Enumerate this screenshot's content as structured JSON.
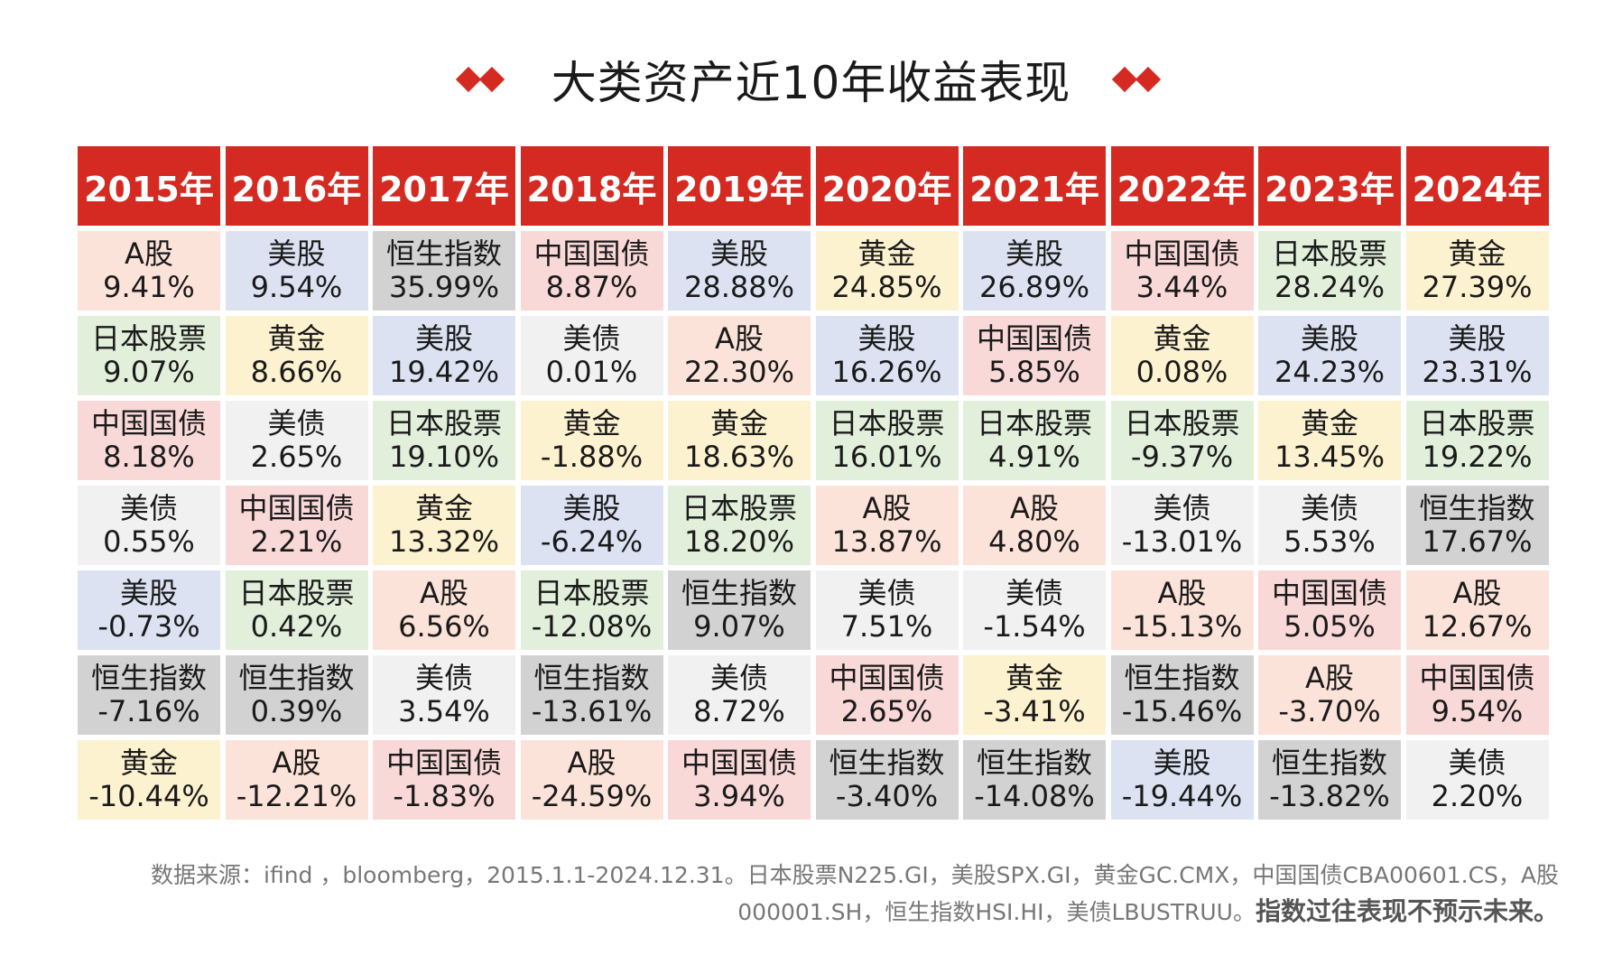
{
  "title": "大类资产近10年收益表现",
  "colors": {
    "header": "#d42a22",
    "A股": "#fce3da",
    "美股": "#dce2f2",
    "恒生指数": "#d2d2d2",
    "日本股票": "#e2efdb",
    "黄金": "#fdf2cf",
    "中国国债": "#f9d8d8",
    "美债": "#f1f1f1"
  },
  "columns": [
    {
      "year": "2015年",
      "items": [
        {
          "name": "A股",
          "value": "9.41%"
        },
        {
          "name": "日本股票",
          "value": "9.07%"
        },
        {
          "name": "中国国债",
          "value": "8.18%"
        },
        {
          "name": "美债",
          "value": "0.55%"
        },
        {
          "name": "美股",
          "value": "-0.73%"
        },
        {
          "name": "恒生指数",
          "value": "-7.16%"
        },
        {
          "name": "黄金",
          "value": "-10.44%"
        }
      ]
    },
    {
      "year": "2016年",
      "items": [
        {
          "name": "美股",
          "value": "9.54%"
        },
        {
          "name": "黄金",
          "value": "8.66%"
        },
        {
          "name": "美债",
          "value": "2.65%"
        },
        {
          "name": "中国国债",
          "value": "2.21%"
        },
        {
          "name": "日本股票",
          "value": "0.42%"
        },
        {
          "name": "恒生指数",
          "value": "0.39%"
        },
        {
          "name": "A股",
          "value": "-12.21%"
        }
      ]
    },
    {
      "year": "2017年",
      "items": [
        {
          "name": "恒生指数",
          "value": "35.99%"
        },
        {
          "name": "美股",
          "value": "19.42%"
        },
        {
          "name": "日本股票",
          "value": "19.10%"
        },
        {
          "name": "黄金",
          "value": "13.32%"
        },
        {
          "name": "A股",
          "value": "6.56%"
        },
        {
          "name": "美债",
          "value": "3.54%"
        },
        {
          "name": "中国国债",
          "value": "-1.83%"
        }
      ]
    },
    {
      "year": "2018年",
      "items": [
        {
          "name": "中国国债",
          "value": "8.87%"
        },
        {
          "name": "美债",
          "value": "0.01%"
        },
        {
          "name": "黄金",
          "value": "-1.88%"
        },
        {
          "name": "美股",
          "value": "-6.24%"
        },
        {
          "name": "日本股票",
          "value": "-12.08%"
        },
        {
          "name": "恒生指数",
          "value": "-13.61%"
        },
        {
          "name": "A股",
          "value": "-24.59%"
        }
      ]
    },
    {
      "year": "2019年",
      "items": [
        {
          "name": "美股",
          "value": "28.88%"
        },
        {
          "name": "A股",
          "value": "22.30%"
        },
        {
          "name": "黄金",
          "value": "18.63%"
        },
        {
          "name": "日本股票",
          "value": "18.20%"
        },
        {
          "name": "恒生指数",
          "value": "9.07%"
        },
        {
          "name": "美债",
          "value": "8.72%"
        },
        {
          "name": "中国国债",
          "value": "3.94%"
        }
      ]
    },
    {
      "year": "2020年",
      "items": [
        {
          "name": "黄金",
          "value": "24.85%"
        },
        {
          "name": "美股",
          "value": "16.26%"
        },
        {
          "name": "日本股票",
          "value": "16.01%"
        },
        {
          "name": "A股",
          "value": "13.87%"
        },
        {
          "name": "美债",
          "value": "7.51%"
        },
        {
          "name": "中国国债",
          "value": "2.65%"
        },
        {
          "name": "恒生指数",
          "value": "-3.40%"
        }
      ]
    },
    {
      "year": "2021年",
      "items": [
        {
          "name": "美股",
          "value": "26.89%"
        },
        {
          "name": "中国国债",
          "value": "5.85%"
        },
        {
          "name": "日本股票",
          "value": "4.91%"
        },
        {
          "name": "A股",
          "value": "4.80%"
        },
        {
          "name": "美债",
          "value": "-1.54%"
        },
        {
          "name": "黄金",
          "value": "-3.41%"
        },
        {
          "name": "恒生指数",
          "value": "-14.08%"
        }
      ]
    },
    {
      "year": "2022年",
      "items": [
        {
          "name": "中国国债",
          "value": "3.44%"
        },
        {
          "name": "黄金",
          "value": "0.08%"
        },
        {
          "name": "日本股票",
          "value": "-9.37%"
        },
        {
          "name": "美债",
          "value": "-13.01%"
        },
        {
          "name": "A股",
          "value": "-15.13%"
        },
        {
          "name": "恒生指数",
          "value": "-15.46%"
        },
        {
          "name": "美股",
          "value": "-19.44%"
        }
      ]
    },
    {
      "year": "2023年",
      "items": [
        {
          "name": "日本股票",
          "value": "28.24%"
        },
        {
          "name": "美股",
          "value": "24.23%"
        },
        {
          "name": "黄金",
          "value": "13.45%"
        },
        {
          "name": "美债",
          "value": "5.53%"
        },
        {
          "name": "中国国债",
          "value": "5.05%"
        },
        {
          "name": "A股",
          "value": "-3.70%"
        },
        {
          "name": "恒生指数",
          "value": "-13.82%"
        }
      ]
    },
    {
      "year": "2024年",
      "items": [
        {
          "name": "黄金",
          "value": "27.39%"
        },
        {
          "name": "美股",
          "value": "23.31%"
        },
        {
          "name": "日本股票",
          "value": "19.22%"
        },
        {
          "name": "恒生指数",
          "value": "17.67%"
        },
        {
          "name": "A股",
          "value": "12.67%"
        },
        {
          "name": "中国国债",
          "value": "9.54%"
        },
        {
          "name": "美债",
          "value": "2.20%"
        }
      ]
    }
  ],
  "footnote": {
    "line1": "数据来源：ifind ，bloomberg，2015.1.1-2024.12.31。日本股票N225.GI，美股SPX.GI，黄金GC.CMX，中国国债CBA00601.CS，A股",
    "line2": "000001.SH，恒生指数HSI.HI，美债LBUSTRUU。",
    "disclaimer": "指数过往表现不预示未来。"
  }
}
